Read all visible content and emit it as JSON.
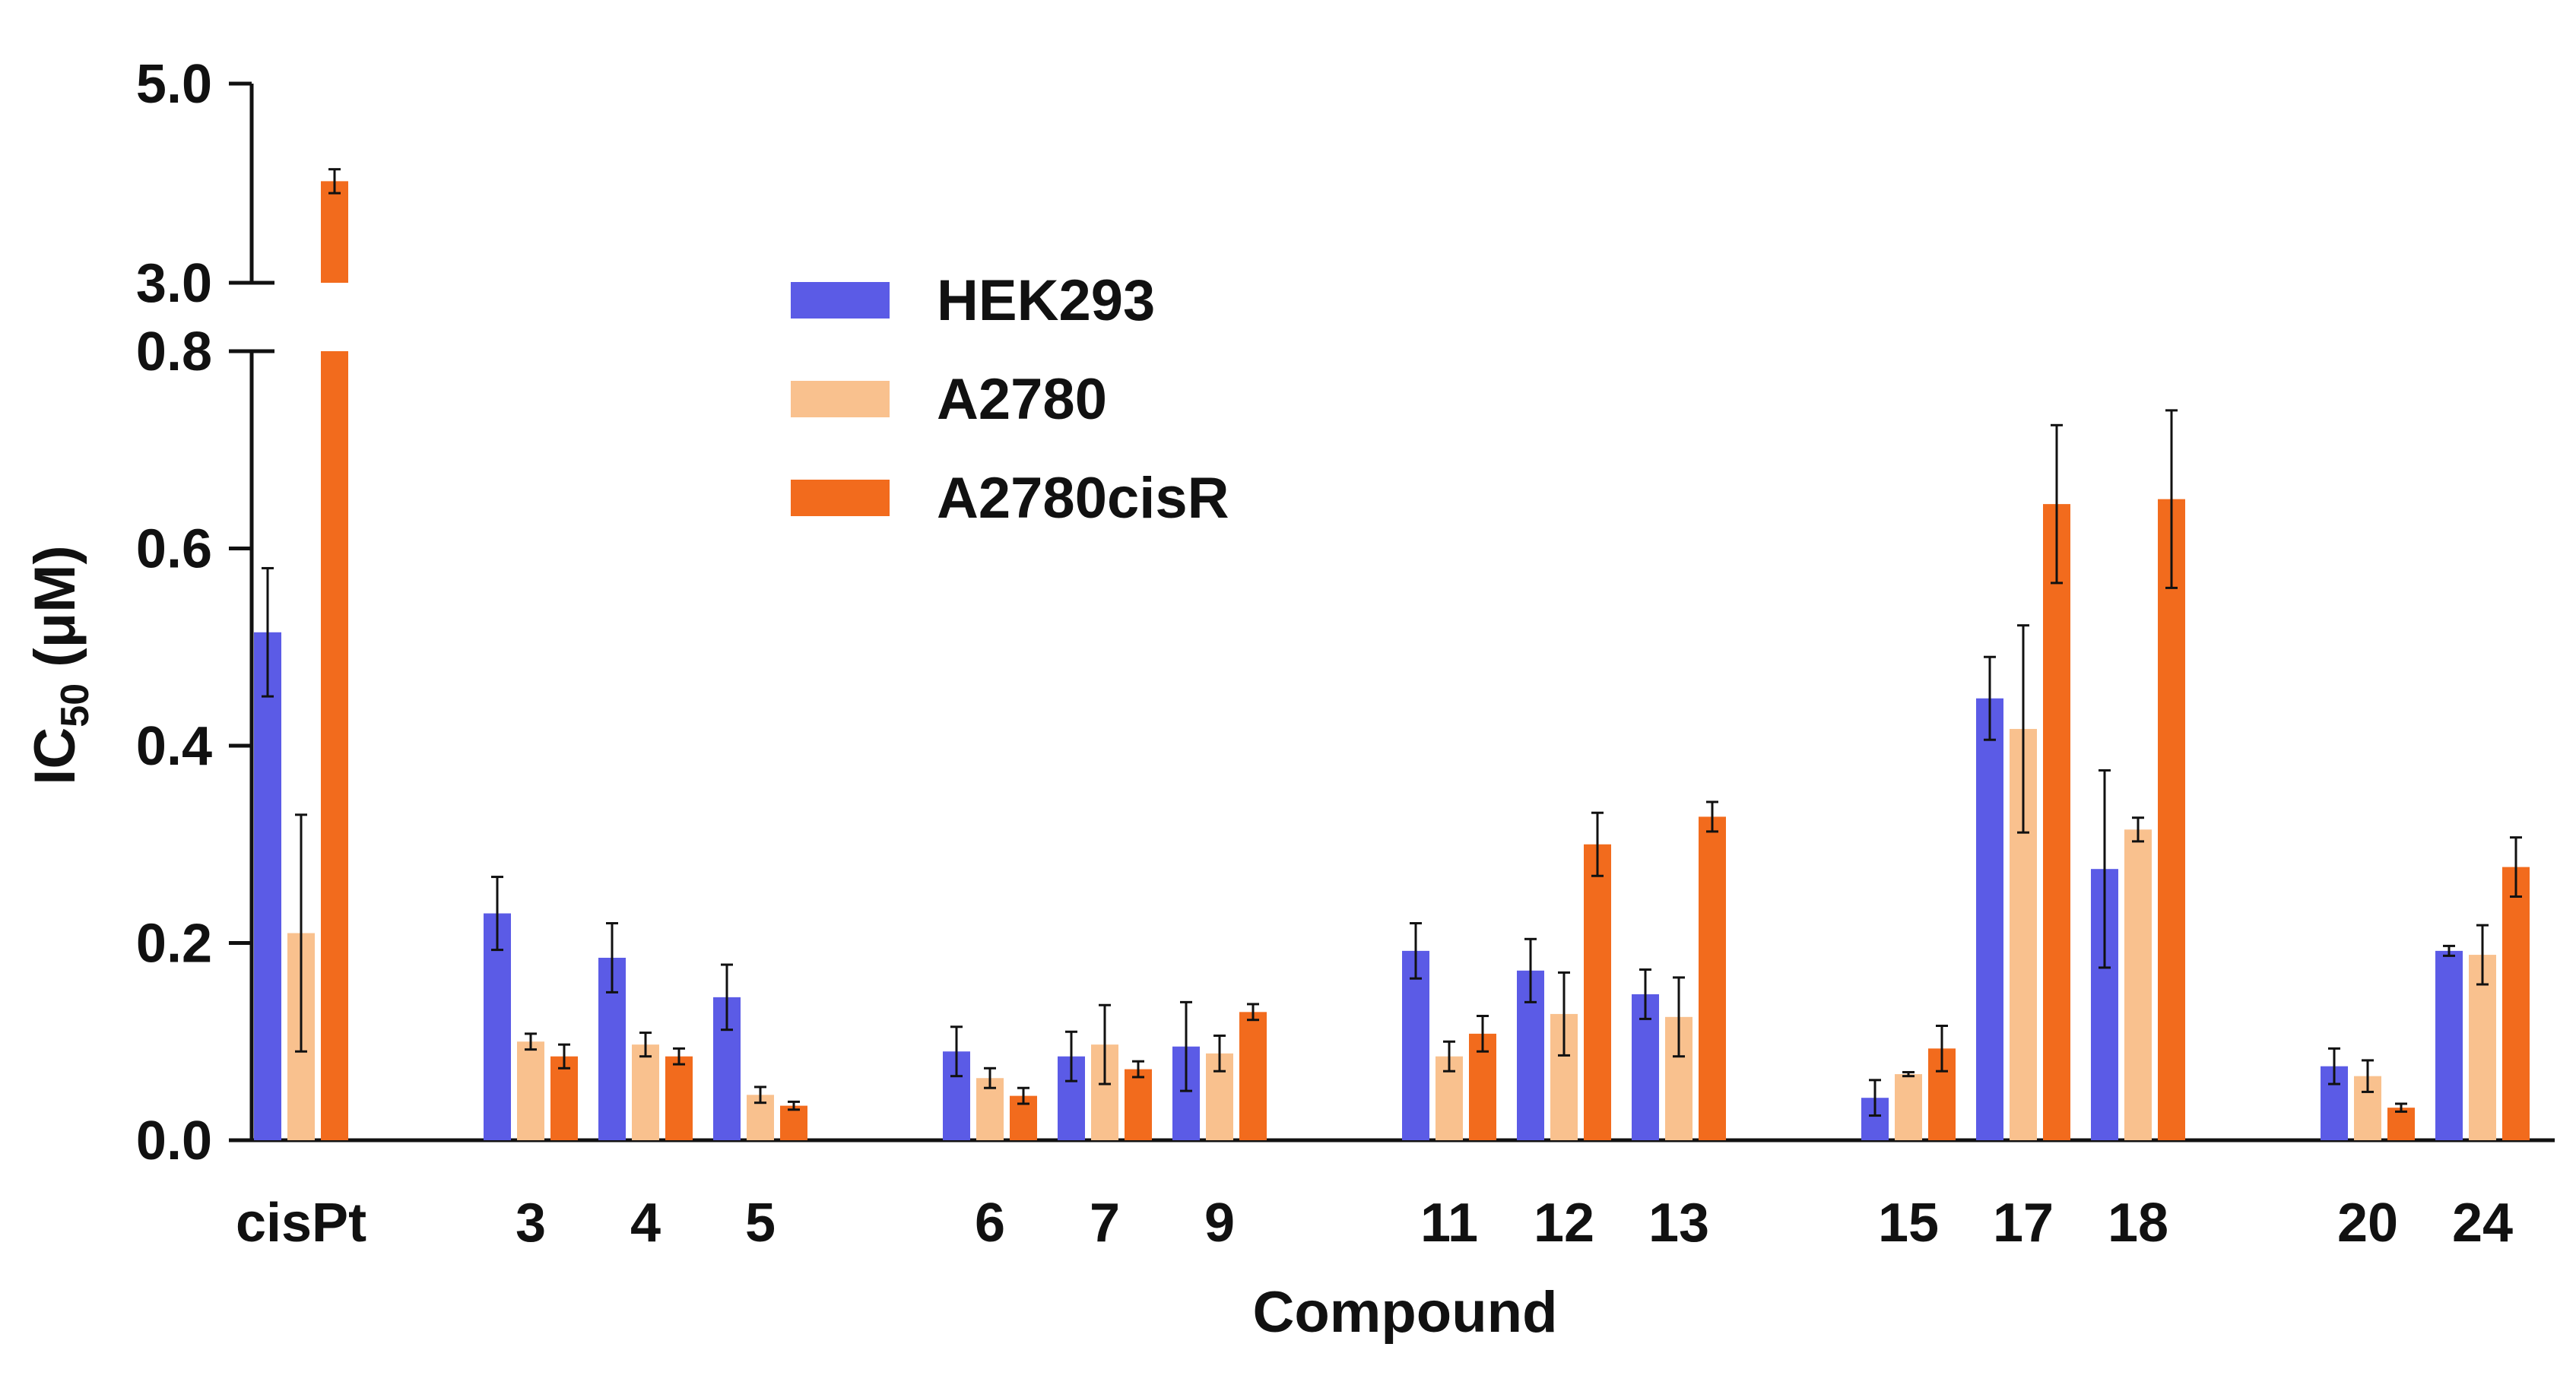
{
  "chart_data": {
    "type": "bar",
    "xlabel": "Compound",
    "ylabel": {
      "main": "IC",
      "sub": "50",
      "unit": " (μM)"
    },
    "y_axis_break": {
      "lower_range": [
        0,
        0.8
      ],
      "upper_range": [
        3.0,
        5.0
      ]
    },
    "yticks_lower": [
      "0.0",
      "0.2",
      "0.4",
      "0.6",
      "0.8"
    ],
    "yticks_upper": [
      "3.0",
      "5.0"
    ],
    "categories": [
      "cisPt",
      "3",
      "4",
      "5",
      "6",
      "7",
      "9",
      "11",
      "12",
      "13",
      "15",
      "17",
      "18",
      "20",
      "24"
    ],
    "groups": [
      [
        0
      ],
      [
        1,
        2,
        3
      ],
      [
        4,
        5,
        6
      ],
      [
        7,
        8,
        9
      ],
      [
        10,
        11,
        12
      ],
      [
        13,
        14
      ]
    ],
    "series": [
      {
        "name": "HEK293",
        "color": "#5B5BE6",
        "values": [
          0.515,
          0.23,
          0.185,
          0.145,
          0.09,
          0.085,
          0.095,
          0.192,
          0.172,
          0.148,
          0.043,
          0.448,
          0.275,
          0.075,
          0.192
        ],
        "errors": [
          0.065,
          0.037,
          0.035,
          0.033,
          0.025,
          0.025,
          0.045,
          0.028,
          0.032,
          0.025,
          0.018,
          0.042,
          0.1,
          0.018,
          0.005
        ]
      },
      {
        "name": "A2780",
        "color": "#F9C18E",
        "values": [
          0.21,
          0.1,
          0.097,
          0.046,
          0.063,
          0.097,
          0.088,
          0.085,
          0.128,
          0.125,
          0.067,
          0.417,
          0.315,
          0.065,
          0.188
        ],
        "errors": [
          0.12,
          0.008,
          0.012,
          0.008,
          0.01,
          0.04,
          0.018,
          0.015,
          0.042,
          0.04,
          0.002,
          0.105,
          0.012,
          0.016,
          0.03
        ]
      },
      {
        "name": "A2780cisR",
        "color": "#F26B1D",
        "values": [
          4.02,
          0.085,
          0.085,
          0.035,
          0.045,
          0.072,
          0.13,
          0.108,
          0.3,
          0.328,
          0.093,
          0.645,
          0.65,
          0.033,
          0.277
        ],
        "errors": [
          0.12,
          0.012,
          0.008,
          0.004,
          0.008,
          0.008,
          0.008,
          0.018,
          0.032,
          0.015,
          0.023,
          0.08,
          0.09,
          0.004,
          0.03
        ]
      }
    ],
    "legend": {
      "position": "top-center"
    },
    "grid": false
  }
}
